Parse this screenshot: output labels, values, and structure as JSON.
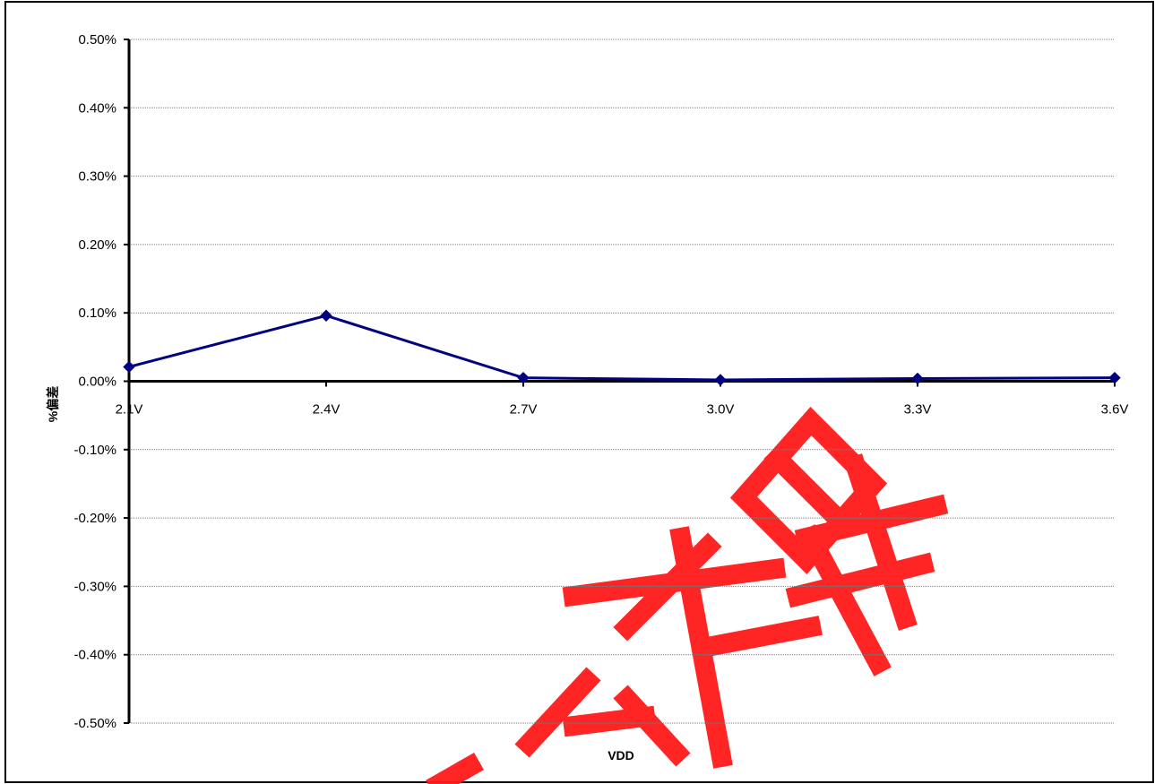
{
  "chart_data": {
    "type": "line",
    "xlabel": "VDD",
    "ylabel": "%偏差",
    "categories": [
      "2.1V",
      "2.4V",
      "2.7V",
      "3.0V",
      "3.3V",
      "3.6V"
    ],
    "series": [
      {
        "values": [
          0.00021,
          0.00096,
          5e-05,
          2e-05,
          4e-05,
          5e-05
        ]
      }
    ],
    "ylim": [
      -0.005,
      0.005
    ],
    "yticks": [
      0.005,
      0.004,
      0.003,
      0.002,
      0.001,
      0.0,
      -0.001,
      -0.002,
      -0.003,
      -0.004,
      -0.005
    ],
    "ytick_labels": [
      "0.50%",
      "0.40%",
      "0.30%",
      "0.20%",
      "0.10%",
      "0.00%",
      "-0.10%",
      "-0.20%",
      "-0.30%",
      "-0.40%",
      "-0.50%"
    ],
    "grid": true,
    "line_color": "#000080",
    "gridline_color": "#808080"
  },
  "watermark": {
    "text": "南天星",
    "color": "#ff1a1a"
  }
}
